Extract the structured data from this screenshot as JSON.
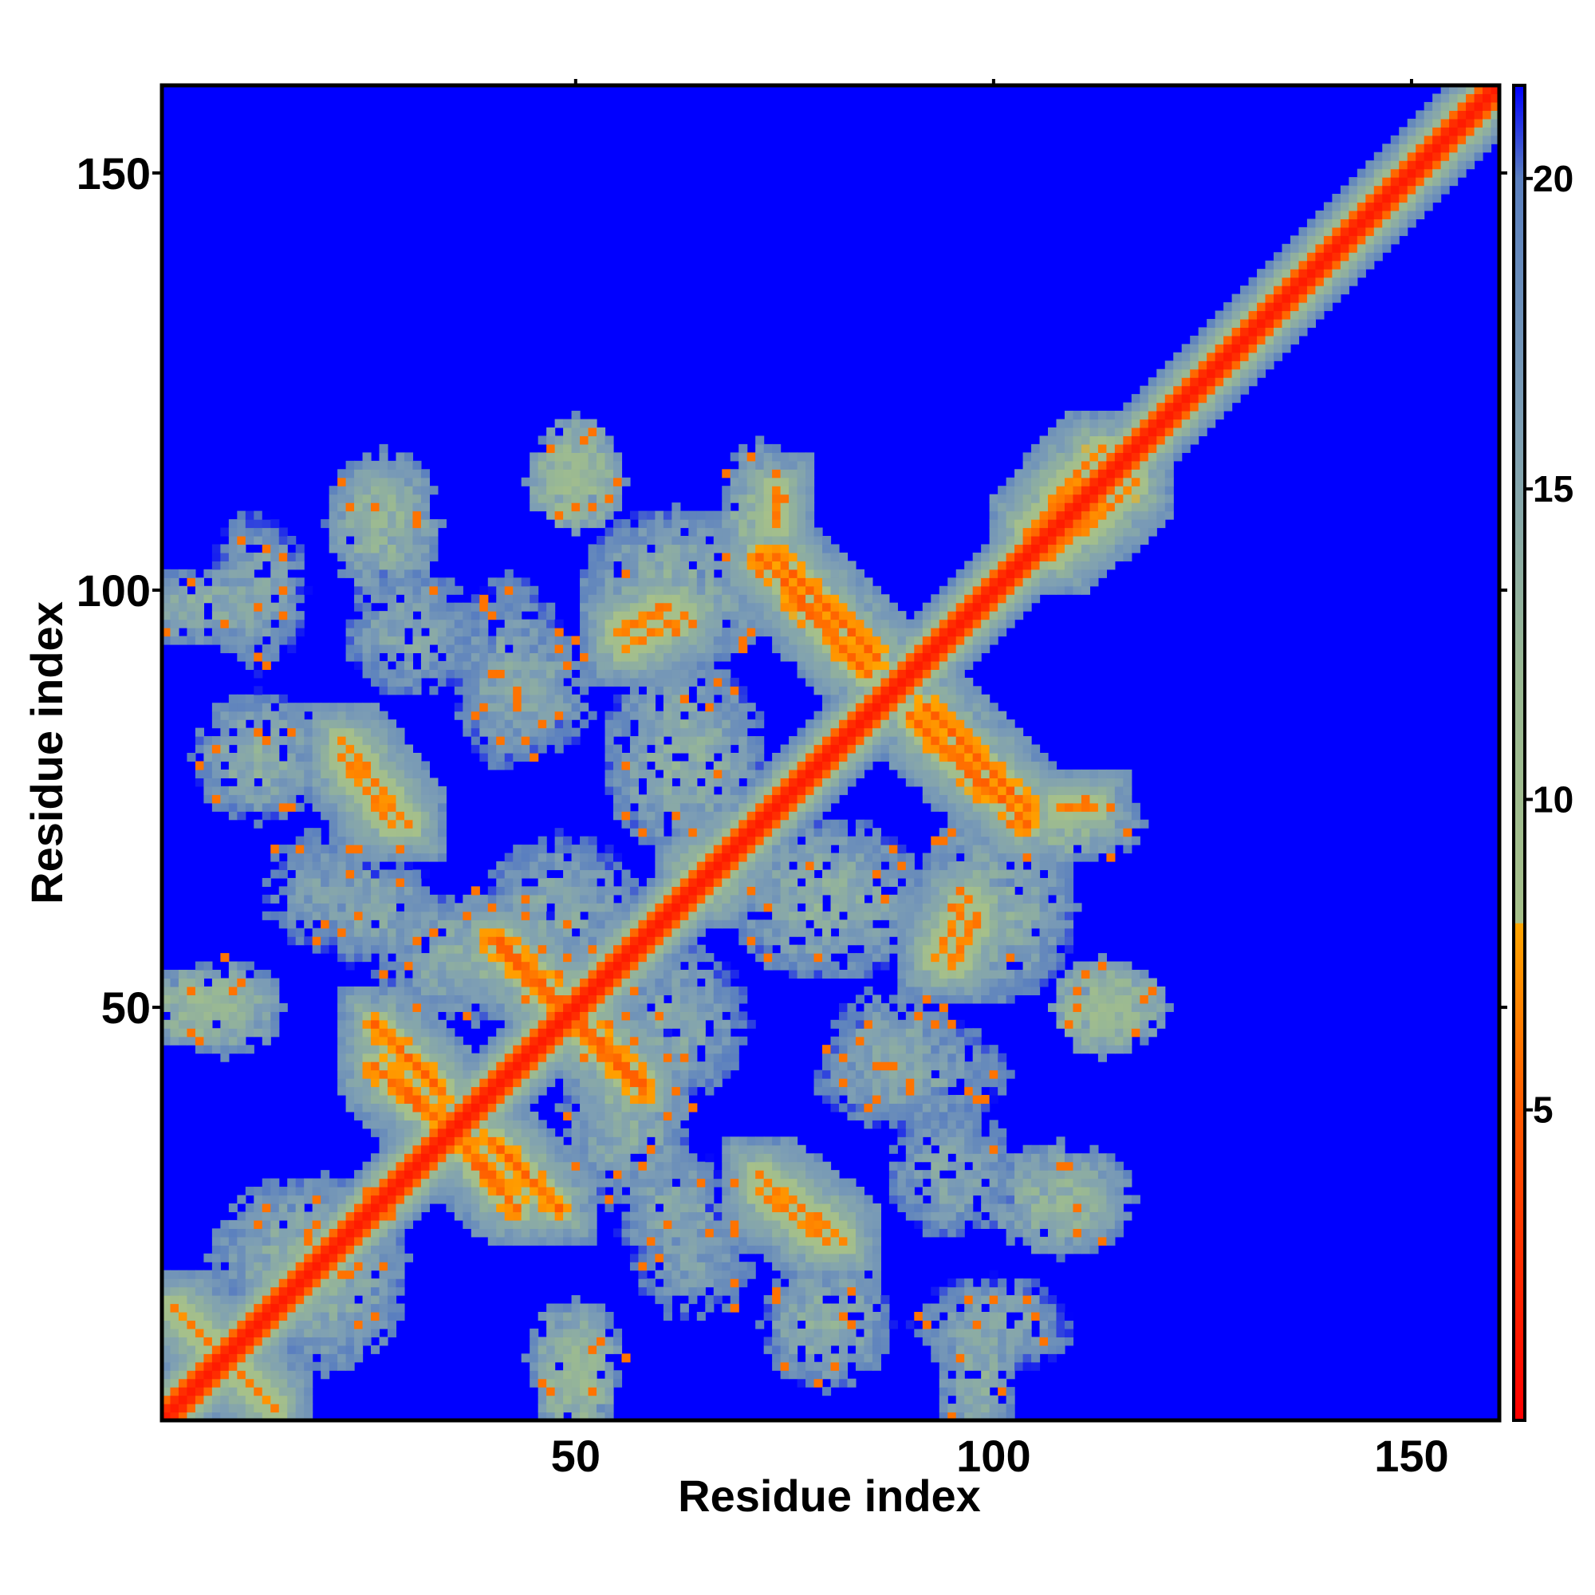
{
  "chart_data": {
    "type": "heatmap",
    "title": "",
    "xlabel": "Residue index",
    "ylabel": "Residue index",
    "n_residues": 160,
    "xlim": [
      1,
      160
    ],
    "ylim": [
      1,
      160
    ],
    "x_ticks": [
      50,
      100,
      150
    ],
    "y_ticks": [
      50,
      100,
      150
    ],
    "x_tick_labels": [
      "50",
      "100",
      "150"
    ],
    "y_tick_labels": [
      "50",
      "100",
      "150"
    ],
    "colorbar": {
      "range": [
        0,
        21.5
      ],
      "ticks": [
        5,
        10,
        15,
        20
      ],
      "tick_labels": [
        "5",
        "10",
        "15",
        "20"
      ],
      "stops": [
        {
          "value": 0,
          "color": "#ff0000"
        },
        {
          "value": 5,
          "color": "#ff5a00"
        },
        {
          "value": 8,
          "color": "#ffa500"
        },
        {
          "value": 8.01,
          "color": "#a6c08a"
        },
        {
          "value": 12,
          "color": "#9ab993"
        },
        {
          "value": 16,
          "color": "#7e9fb4"
        },
        {
          "value": 20,
          "color": "#5a7fbf"
        },
        {
          "value": 21.5,
          "color": "#0000ff"
        }
      ]
    },
    "background_value": 21.5,
    "diagonal": {
      "core_value": 1.5,
      "edge_value": 5.5,
      "core_halfwidth": 1.5,
      "halo_halfwidth": 6
    },
    "contact_bands": [
      {
        "from": [
          2,
          14
        ],
        "to": [
          12,
          4
        ],
        "value": 6
      },
      {
        "from": [
          26,
          43
        ],
        "to": [
          34,
          36
        ],
        "value": 5
      },
      {
        "from": [
          40,
          34
        ],
        "to": [
          48,
          26
        ],
        "value": 5
      },
      {
        "from": [
          72,
          28
        ],
        "to": [
          80,
          22
        ],
        "value": 6
      },
      {
        "from": [
          50,
          48
        ],
        "to": [
          58,
          40
        ],
        "value": 5
      },
      {
        "from": [
          41,
          58
        ],
        "to": [
          49,
          50
        ],
        "value": 5
      },
      {
        "from": [
          22,
          82
        ],
        "to": [
          30,
          72
        ],
        "value": 6
      },
      {
        "from": [
          55,
          95
        ],
        "to": [
          61,
          98
        ],
        "value": 6
      },
      {
        "from": [
          72,
          104
        ],
        "to": [
          85,
          90
        ],
        "value": 5
      },
      {
        "from": [
          92,
          86
        ],
        "to": [
          104,
          74
        ],
        "value": 5
      },
      {
        "from": [
          93,
          56
        ],
        "to": [
          97,
          63
        ],
        "value": 6
      },
      {
        "from": [
          108,
          74
        ],
        "to": [
          112,
          74
        ],
        "value": 6
      },
      {
        "from": [
          64,
          65
        ],
        "to": [
          70,
          70
        ],
        "value": 7
      },
      {
        "from": [
          104,
          107
        ],
        "to": [
          113,
          117
        ],
        "value": 6
      }
    ],
    "contact_blobs": [
      {
        "cx": 5,
        "cy": 50,
        "rx": 9,
        "ry": 5,
        "value": 12
      },
      {
        "cx": 5,
        "cy": 98,
        "rx": 9,
        "ry": 5,
        "value": 14
      },
      {
        "cx": 27,
        "cy": 108,
        "rx": 7,
        "ry": 9,
        "value": 13
      },
      {
        "cx": 50,
        "cy": 113,
        "rx": 6,
        "ry": 6,
        "value": 11
      },
      {
        "cx": 72,
        "cy": 108,
        "rx": 5,
        "ry": 10,
        "value": 13
      },
      {
        "cx": 115,
        "cy": 50,
        "rx": 6,
        "ry": 5,
        "value": 12
      },
      {
        "cx": 110,
        "cy": 27,
        "rx": 6,
        "ry": 5,
        "value": 13
      },
      {
        "cx": 50,
        "cy": 8,
        "rx": 6,
        "ry": 7,
        "value": 13
      },
      {
        "cx": 80,
        "cy": 12,
        "rx": 8,
        "ry": 8,
        "value": 14
      },
      {
        "cx": 100,
        "cy": 12,
        "rx": 10,
        "ry": 6,
        "value": 15
      },
      {
        "cx": 38,
        "cy": 56,
        "rx": 12,
        "ry": 8,
        "value": 14
      },
      {
        "cx": 63,
        "cy": 80,
        "rx": 10,
        "ry": 12,
        "value": 14
      },
      {
        "cx": 100,
        "cy": 62,
        "rx": 10,
        "ry": 12,
        "value": 14
      },
      {
        "cx": 62,
        "cy": 48,
        "rx": 9,
        "ry": 10,
        "value": 15
      },
      {
        "cx": 88,
        "cy": 45,
        "rx": 8,
        "ry": 8,
        "value": 15
      },
      {
        "cx": 18,
        "cy": 20,
        "rx": 12,
        "ry": 10,
        "value": 14
      },
      {
        "cx": 62,
        "cy": 26,
        "rx": 8,
        "ry": 7,
        "value": 15
      },
      {
        "cx": 95,
        "cy": 30,
        "rx": 8,
        "ry": 8,
        "value": 15
      },
      {
        "cx": 20,
        "cy": 64,
        "rx": 8,
        "ry": 8,
        "value": 16
      },
      {
        "cx": 42,
        "cy": 90,
        "rx": 7,
        "ry": 12,
        "value": 15
      }
    ]
  }
}
